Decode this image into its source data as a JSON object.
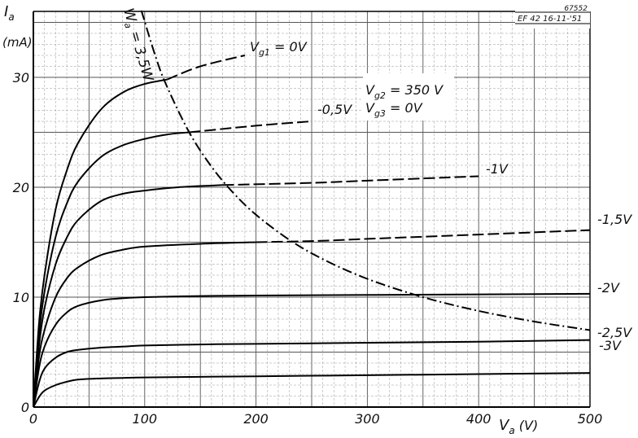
{
  "header": {
    "ref_number": "67552",
    "tube_and_date": "EF 42  16-11-'51"
  },
  "chart_data": {
    "type": "line",
    "x_axis": {
      "label_symbol": "V",
      "label_sub": "a",
      "unit": "(V)",
      "range": [
        0,
        500
      ],
      "ticks": [
        "0",
        "100",
        "200",
        "300",
        "400",
        "500"
      ]
    },
    "y_axis": {
      "label_symbol": "I",
      "label_sub": "a",
      "unit": "(mA)",
      "range": [
        0,
        36
      ],
      "ticks": [
        "0",
        "10",
        "20",
        "30"
      ]
    },
    "grid": true,
    "conditions": {
      "g2_symbol": "V",
      "g2_sub": "g2",
      "g2_value": " = 350 V",
      "g3_symbol": "V",
      "g3_sub": "g3",
      "g3_value": " = 0V"
    },
    "hyperbola": {
      "symbol": "W",
      "sub": "a",
      "value": " = 3,5W",
      "power_w": 3.5,
      "x": [
        97,
        110,
        120,
        140,
        160,
        180,
        200,
        230,
        260,
        300,
        350,
        400,
        450,
        500
      ]
    },
    "series": [
      {
        "name": "-3V",
        "solid_until": 500,
        "x": [
          0,
          5,
          10,
          20,
          30,
          40,
          60,
          80,
          100,
          150,
          200,
          300,
          400,
          500
        ],
        "y": [
          0,
          0.9,
          1.5,
          2.0,
          2.3,
          2.5,
          2.6,
          2.65,
          2.7,
          2.75,
          2.8,
          2.9,
          3.0,
          3.1
        ]
      },
      {
        "name": "-2,5V",
        "solid_until": 500,
        "x": [
          0,
          5,
          10,
          20,
          30,
          40,
          60,
          80,
          100,
          150,
          200,
          300,
          400,
          500
        ],
        "y": [
          0,
          2.2,
          3.5,
          4.5,
          5.0,
          5.2,
          5.4,
          5.5,
          5.6,
          5.7,
          5.75,
          5.85,
          5.95,
          6.1
        ]
      },
      {
        "name": "-2V",
        "solid_until": 500,
        "x": [
          0,
          5,
          10,
          20,
          30,
          40,
          60,
          80,
          100,
          150,
          200,
          300,
          400,
          500
        ],
        "y": [
          0,
          3.5,
          5.5,
          7.5,
          8.6,
          9.2,
          9.7,
          9.9,
          10.0,
          10.1,
          10.15,
          10.2,
          10.25,
          10.3
        ]
      },
      {
        "name": "-1,5V",
        "solid_until": 240,
        "x": [
          0,
          5,
          10,
          20,
          30,
          40,
          60,
          80,
          100,
          150,
          200,
          250,
          300,
          400,
          500
        ],
        "y": [
          0,
          4.5,
          7.0,
          10.0,
          11.7,
          12.7,
          13.8,
          14.3,
          14.6,
          14.85,
          15.0,
          15.1,
          15.3,
          15.7,
          16.1
        ]
      },
      {
        "name": "-1V",
        "solid_until": 170,
        "x": [
          0,
          5,
          10,
          20,
          30,
          40,
          60,
          80,
          100,
          130,
          170,
          250,
          300,
          400
        ],
        "y": [
          0,
          5.5,
          9.0,
          13.0,
          15.4,
          17.0,
          18.7,
          19.4,
          19.7,
          20.0,
          20.2,
          20.4,
          20.6,
          21.0
        ]
      },
      {
        "name": "-0,5V",
        "solid_until": 140,
        "x": [
          0,
          5,
          10,
          20,
          30,
          40,
          60,
          80,
          100,
          120,
          140,
          200,
          250
        ],
        "y": [
          0,
          6.5,
          10.5,
          15.5,
          18.5,
          20.5,
          22.7,
          23.8,
          24.4,
          24.8,
          25.0,
          25.6,
          26.0
        ]
      },
      {
        "name": "V",
        "name_sub": "g1",
        "name_suffix": " = 0V",
        "solid_until": 120,
        "x": [
          0,
          5,
          10,
          20,
          30,
          40,
          60,
          80,
          100,
          120,
          150,
          190
        ],
        "y": [
          0,
          7.5,
          12.0,
          18.0,
          21.5,
          24.0,
          27.0,
          28.6,
          29.4,
          29.8,
          31.0,
          32.0
        ]
      }
    ]
  }
}
